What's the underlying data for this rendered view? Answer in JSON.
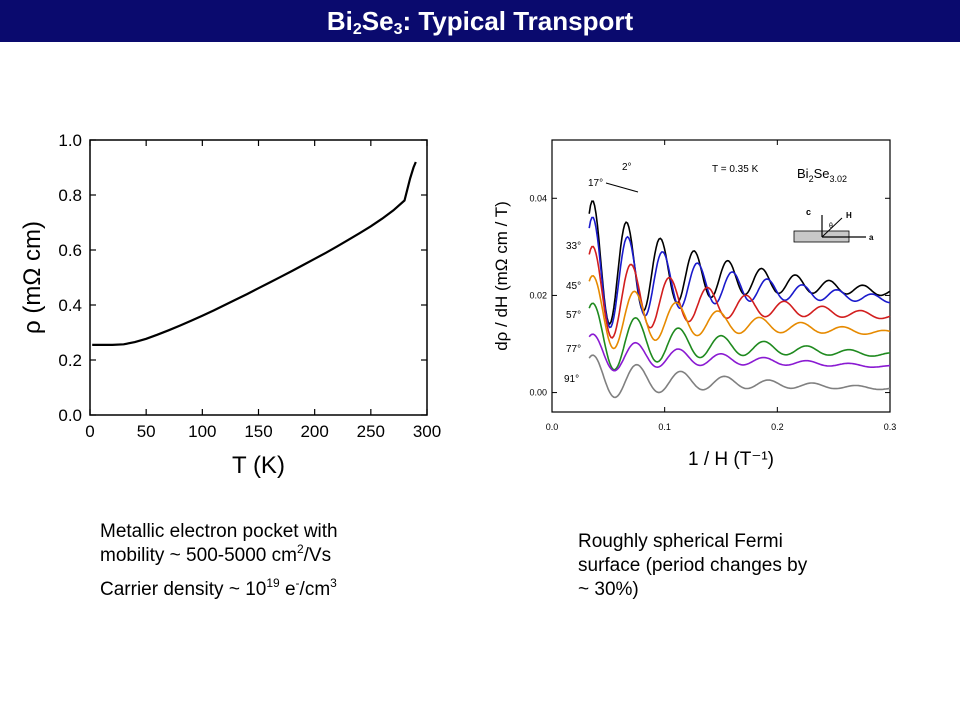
{
  "slide": {
    "title_main": "Bi",
    "title_sub1": "2",
    "title_mid": "Se",
    "title_sub2": "3",
    "title_rest": ": Typical Transport"
  },
  "notes_left": {
    "line1": "Metallic electron pocket with",
    "line2_pre": "mobility ~ 500-5000 cm",
    "line2_sup": "2",
    "line2_post": "/Vs",
    "line3_pre": "Carrier density ~ 10",
    "line3_sup1": "19",
    "line3_mid": " e",
    "line3_sup2": "-",
    "line3_post": "/cm",
    "line3_sup3": "3"
  },
  "notes_right": {
    "line1": "Roughly spherical Fermi",
    "line2": "surface (period changes by",
    "line3": "~ 30%)"
  },
  "chart_data": [
    {
      "type": "line",
      "xlabel": "T (K)",
      "ylabel": "ρ (mΩ cm)",
      "xlim": [
        0,
        300
      ],
      "ylim": [
        0,
        1.0
      ],
      "x_ticks": [
        "0",
        "50",
        "100",
        "150",
        "200",
        "250",
        "300"
      ],
      "y_ticks": [
        "0.0",
        "0.2",
        "0.4",
        "0.6",
        "0.8",
        "1.0"
      ],
      "line_color": "#000000",
      "series": [
        {
          "x": [
            2,
            10,
            20,
            30,
            40,
            50,
            60,
            70,
            80,
            90,
            100,
            110,
            120,
            130,
            140,
            150,
            160,
            170,
            180,
            190,
            200,
            210,
            220,
            230,
            240,
            250,
            260,
            270,
            280,
            285,
            288,
            290
          ],
          "values": [
            0.255,
            0.255,
            0.255,
            0.257,
            0.265,
            0.277,
            0.292,
            0.308,
            0.325,
            0.343,
            0.361,
            0.38,
            0.4,
            0.42,
            0.44,
            0.461,
            0.482,
            0.503,
            0.524,
            0.546,
            0.568,
            0.59,
            0.613,
            0.637,
            0.661,
            0.686,
            0.714,
            0.744,
            0.78,
            0.86,
            0.9,
            0.92
          ]
        }
      ]
    },
    {
      "type": "line",
      "xlabel": "1 / H (T⁻¹)",
      "ylabel": "dρ / dH (mΩ cm / T)",
      "xlim": [
        0.0,
        0.3
      ],
      "ylim": [
        -0.004,
        0.052
      ],
      "x_ticks": [
        "0.0",
        "0.1",
        "0.2",
        "0.3"
      ],
      "y_ticks": [
        "0.00",
        "0.02",
        "0.04"
      ],
      "annotations": {
        "temperature": "T = 0.35 K",
        "material_main": "Bi",
        "material_sub1": "2",
        "material_mid": "Se",
        "material_sub2": "3.02",
        "inset_c": "c",
        "inset_h": "H",
        "inset_theta": "θ",
        "inset_a": "a"
      },
      "series": [
        {
          "name": "2°",
          "color": "#000000",
          "offset": 0.026,
          "amp": 1.0,
          "freq": 0.03
        },
        {
          "name": "17°",
          "color": "#1a1acc",
          "offset": 0.024,
          "amp": 0.9,
          "freq": 0.031
        },
        {
          "name": "33°",
          "color": "#d21e1e",
          "offset": 0.02,
          "amp": 0.75,
          "freq": 0.034
        },
        {
          "name": "45°",
          "color": "#e68a00",
          "offset": 0.016,
          "amp": 0.6,
          "freq": 0.037
        },
        {
          "name": "57°",
          "color": "#1f8a1f",
          "offset": 0.011,
          "amp": 0.55,
          "freq": 0.038
        },
        {
          "name": "77°",
          "color": "#8a1ad2",
          "offset": 0.008,
          "amp": 0.3,
          "freq": 0.038
        },
        {
          "name": "91°",
          "color": "#808080",
          "offset": 0.003,
          "amp": 0.35,
          "freq": 0.039
        }
      ],
      "label_order": [
        "2°",
        "17°",
        "33°",
        "45°",
        "57°",
        "77°",
        "91°"
      ]
    }
  ]
}
